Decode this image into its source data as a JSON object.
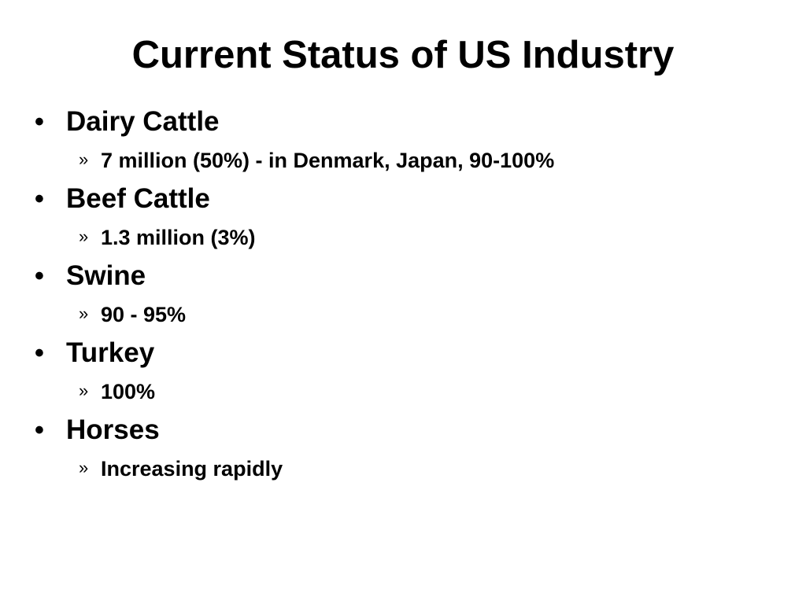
{
  "slide": {
    "title": "Current Status of US Industry",
    "bullet_marker": "•",
    "sub_marker": "»",
    "items": [
      {
        "label": "Dairy Cattle",
        "sub": "7 million (50%) - in Denmark, Japan, 90-100%"
      },
      {
        "label": "Beef Cattle",
        "sub": "1.3 million (3%)"
      },
      {
        "label": "Swine",
        "sub": "90 - 95%"
      },
      {
        "label": "Turkey",
        "sub": "100%"
      },
      {
        "label": "Horses",
        "sub": "Increasing rapidly"
      }
    ]
  }
}
